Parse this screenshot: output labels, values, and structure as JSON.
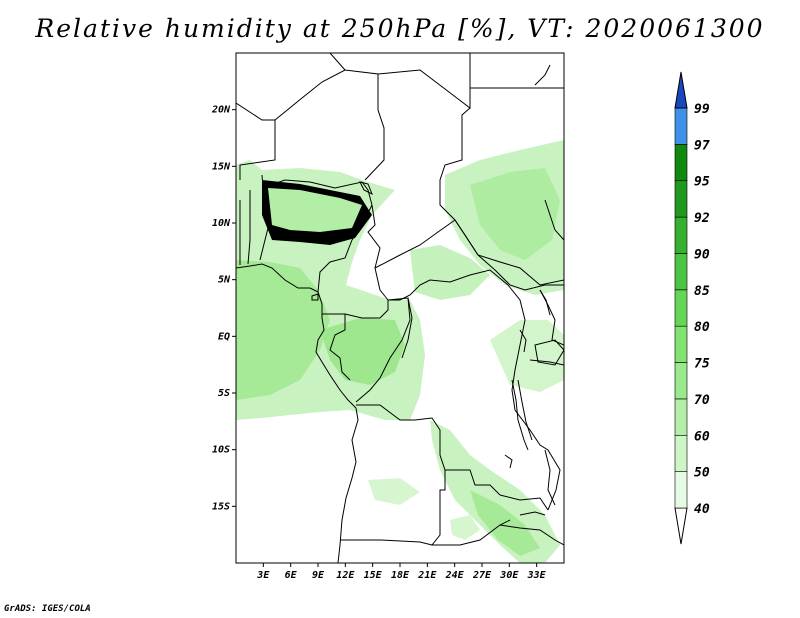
{
  "title": "Relative humidity at 250hPa [%], VT: 2020061300",
  "credit": "GrADS: IGES/COLA",
  "map": {
    "lon_range": [
      0,
      36
    ],
    "lat_range": [
      -20,
      25
    ],
    "lon_ticks": [
      {
        "value": 3,
        "label": "3E"
      },
      {
        "value": 6,
        "label": "6E"
      },
      {
        "value": 9,
        "label": "9E"
      },
      {
        "value": 12,
        "label": "12E"
      },
      {
        "value": 15,
        "label": "15E"
      },
      {
        "value": 18,
        "label": "18E"
      },
      {
        "value": 21,
        "label": "21E"
      },
      {
        "value": 24,
        "label": "24E"
      },
      {
        "value": 27,
        "label": "27E"
      },
      {
        "value": 30,
        "label": "30E"
      },
      {
        "value": 33,
        "label": "33E"
      }
    ],
    "lat_ticks": [
      {
        "value": 20,
        "label": "20N"
      },
      {
        "value": 15,
        "label": "15N"
      },
      {
        "value": 10,
        "label": "10N"
      },
      {
        "value": 5,
        "label": "5N"
      },
      {
        "value": 0,
        "label": "EQ"
      },
      {
        "value": -5,
        "label": "5S"
      },
      {
        "value": -10,
        "label": "10S"
      },
      {
        "value": -15,
        "label": "15S"
      }
    ]
  },
  "colorbar": {
    "levels": [
      {
        "label": "40",
        "color": "#e6fbe3"
      },
      {
        "label": "50",
        "color": "#cdf5c6"
      },
      {
        "label": "60",
        "color": "#b4efaa"
      },
      {
        "label": "70",
        "color": "#9be98d"
      },
      {
        "label": "75",
        "color": "#82e371"
      },
      {
        "label": "80",
        "color": "#64d656"
      },
      {
        "label": "85",
        "color": "#4ac443"
      },
      {
        "label": "90",
        "color": "#35b02f"
      },
      {
        "label": "92",
        "color": "#1f9a1f"
      },
      {
        "label": "95",
        "color": "#0f8a0f"
      },
      {
        "label": "97",
        "color": "#3f91e8"
      },
      {
        "label": "99",
        "color": "#1e67d6"
      }
    ],
    "low_color": "#ffffff",
    "high_color": "#1848c0"
  }
}
